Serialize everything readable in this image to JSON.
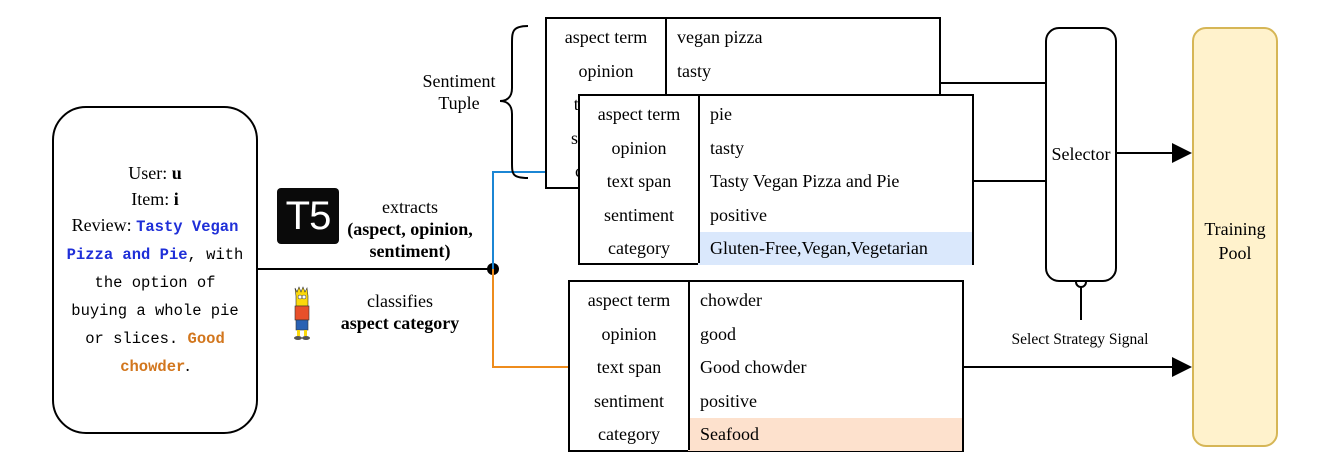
{
  "review": {
    "user_prefix": "User: ",
    "user_value": "u",
    "item_prefix": "Item: ",
    "item_value": "i",
    "review_prefix": "Review: ",
    "highlight_1": "Tasty Vegan Pizza and Pie",
    "text_mid": ", with the option of buying a whole pie or slices. ",
    "highlight_2": "Good chowder",
    "text_end": "."
  },
  "t5": {
    "logo_text": "T5",
    "extracts": "extracts",
    "extracts_target": "(aspect, opinion, sentiment)",
    "classifies": "classifies",
    "classifies_target": "aspect category"
  },
  "sentiment_tuple_label": "Sentiment Tuple",
  "tuple_back": {
    "rows": [
      {
        "key": "aspect term",
        "value": "vegan pizza"
      },
      {
        "key": "opinion",
        "value": "tasty"
      },
      {
        "key": "text span",
        "value": ""
      },
      {
        "key": "sentiment",
        "value": ""
      },
      {
        "key": "category",
        "value": ""
      }
    ]
  },
  "tuple_front": {
    "rows": [
      {
        "key": "aspect term",
        "value": "pie"
      },
      {
        "key": "opinion",
        "value": "tasty"
      },
      {
        "key": "text span",
        "value": "Tasty Vegan Pizza and Pie"
      },
      {
        "key": "sentiment",
        "value": "positive"
      },
      {
        "key": "category",
        "value": "Gluten-Free,Vegan,Vegetarian"
      }
    ]
  },
  "tuple_bottom": {
    "rows": [
      {
        "key": "aspect term",
        "value": "chowder"
      },
      {
        "key": "opinion",
        "value": "good"
      },
      {
        "key": "text span",
        "value": "Good chowder"
      },
      {
        "key": "sentiment",
        "value": "positive"
      },
      {
        "key": "category",
        "value": "Seafood"
      }
    ]
  },
  "selector_label": "Selector",
  "select_strategy_label": "Select Strategy Signal",
  "training_pool_label": "Training Pool",
  "colors": {
    "blue_line": "#1b86d4",
    "orange_line": "#ee8c1c",
    "category_blue": "#dae8fc",
    "category_orange": "#fde1cd",
    "pool_fill": "#fff2cc",
    "pool_border": "#d6b656"
  }
}
